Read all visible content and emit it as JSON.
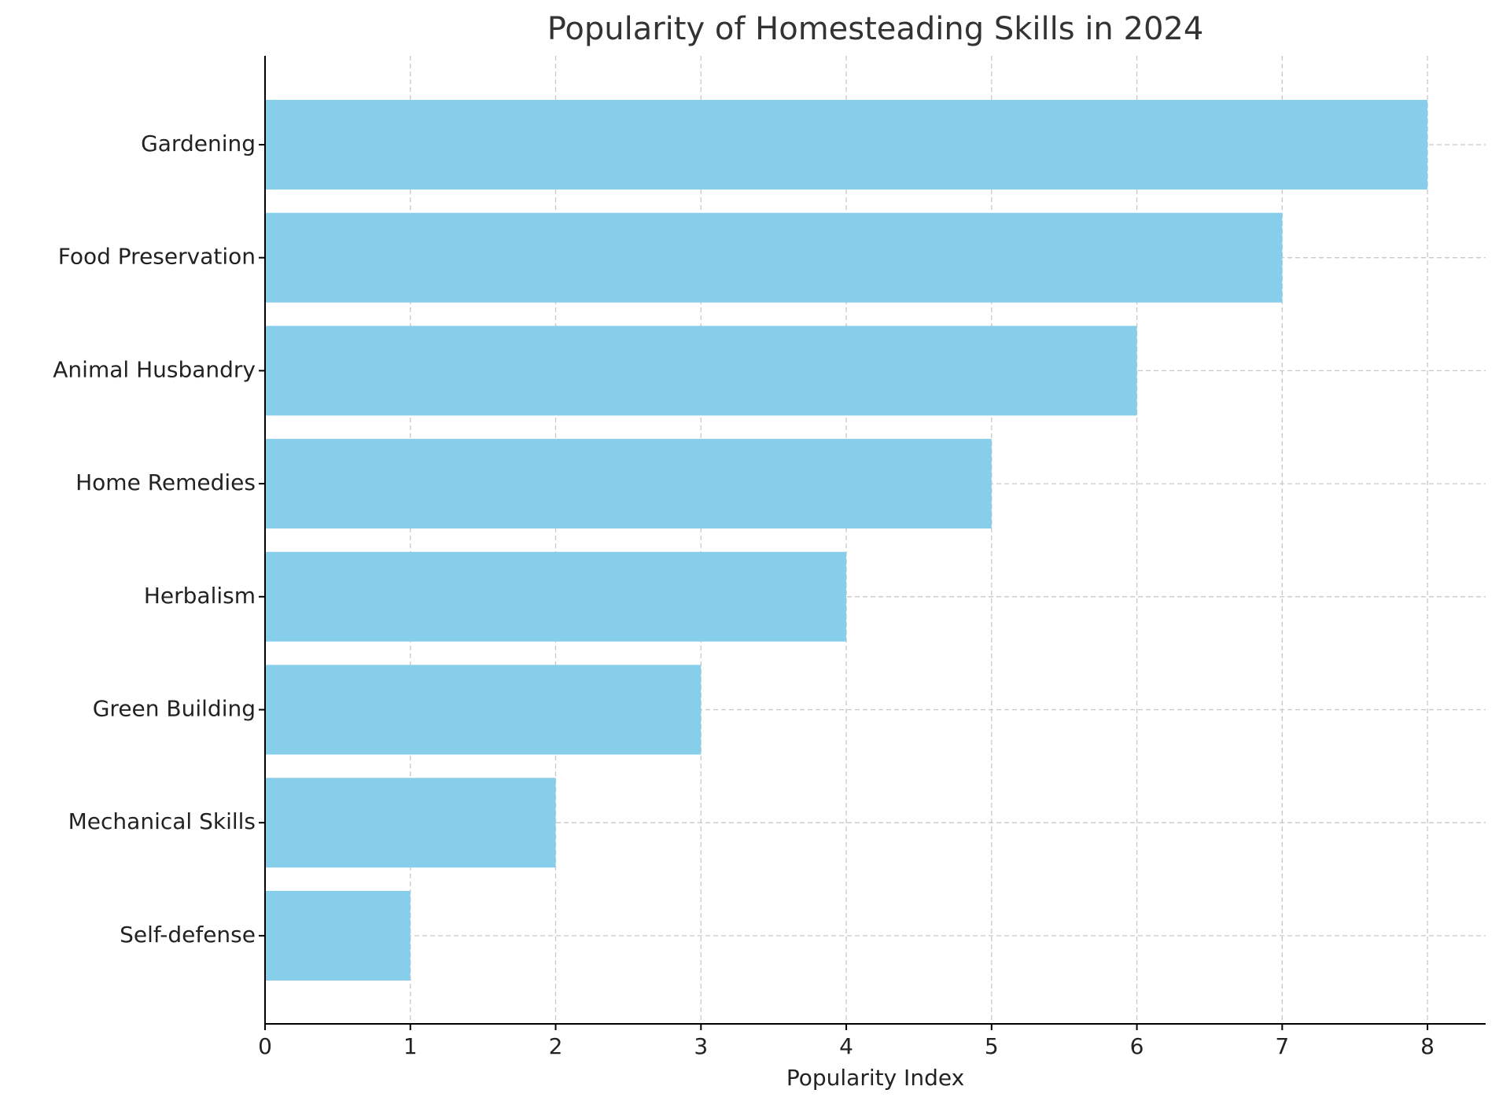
{
  "chart_data": {
    "type": "barh",
    "title": "Popularity of Homesteading Skills in 2024",
    "xlabel": "Popularity Index",
    "categories": [
      "Gardening",
      "Food Preservation",
      "Animal Husbandry",
      "Home Remedies",
      "Herbalism",
      "Green Building",
      "Mechanical Skills",
      "Self-defense"
    ],
    "values": [
      8,
      7,
      6,
      5,
      4,
      3,
      2,
      1
    ],
    "color": "#87ceeb",
    "xlim": [
      0,
      8.4
    ],
    "xticks": [
      0,
      1,
      2,
      3,
      4,
      5,
      6,
      7,
      8
    ],
    "grid": true
  }
}
